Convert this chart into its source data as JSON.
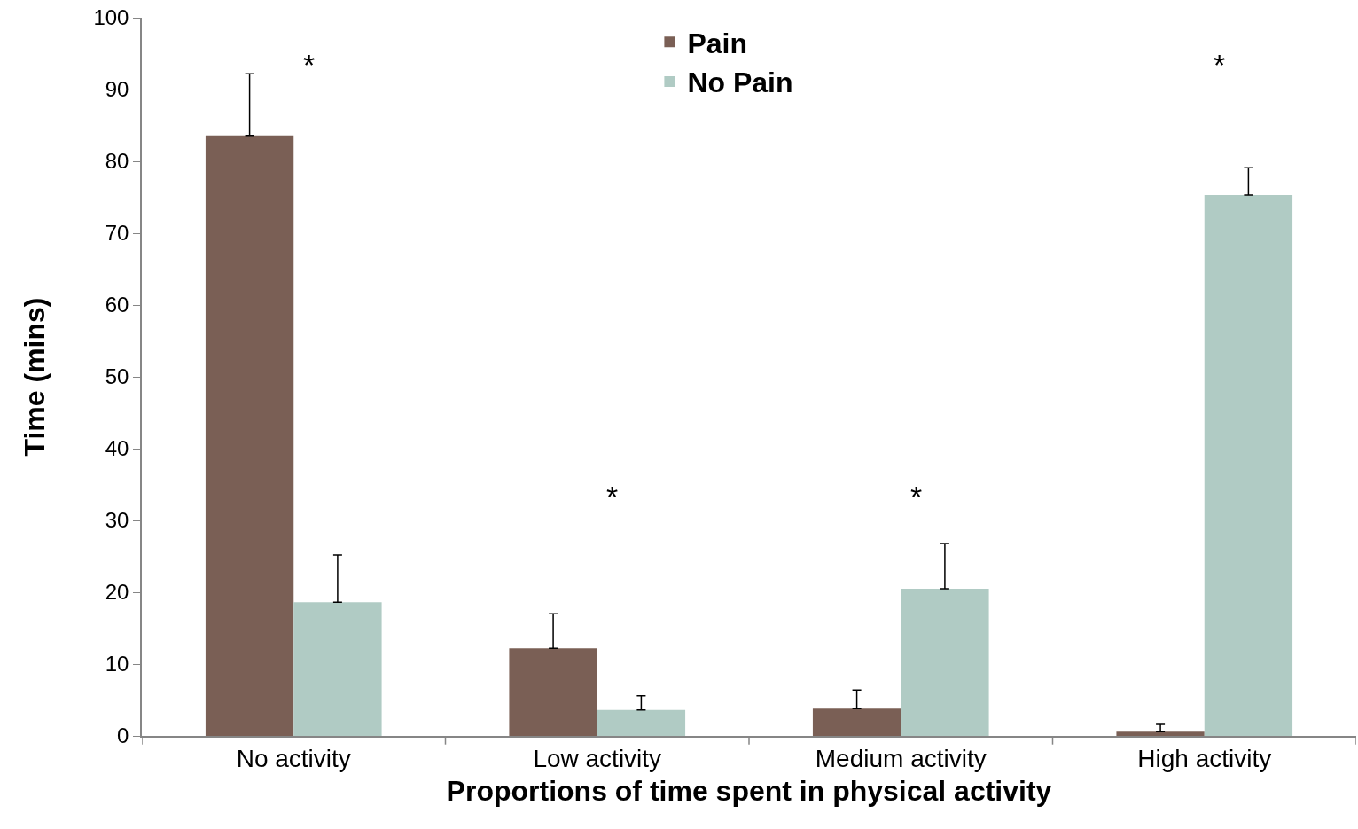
{
  "chart_data": {
    "type": "bar",
    "xlabel": "Proportions of time spent in physical activity",
    "ylabel": "Time (mins)",
    "categories": [
      "No activity",
      "Low activity",
      "Medium activity",
      "High activity"
    ],
    "series": [
      {
        "name": "Pain",
        "color": "#7a5f55",
        "values": [
          83.6,
          12.2,
          3.8,
          0.6
        ],
        "errors": [
          [
            83.6,
            92.2
          ],
          [
            12.2,
            17.0
          ],
          [
            3.8,
            6.4
          ],
          [
            0.6,
            1.6
          ]
        ]
      },
      {
        "name": "No Pain",
        "color": "#b0cbc4",
        "values": [
          18.6,
          3.6,
          20.5,
          75.3
        ],
        "errors": [
          [
            18.6,
            25.2
          ],
          [
            3.6,
            5.6
          ],
          [
            20.5,
            26.8
          ],
          [
            75.3,
            79.1
          ]
        ]
      }
    ],
    "ylim": [
      0,
      100
    ],
    "yticks": [
      0,
      10,
      20,
      30,
      40,
      50,
      60,
      70,
      80,
      90,
      100
    ],
    "grid": false,
    "legend": "top",
    "annotations": [
      "*",
      "*",
      "*",
      "*"
    ]
  }
}
